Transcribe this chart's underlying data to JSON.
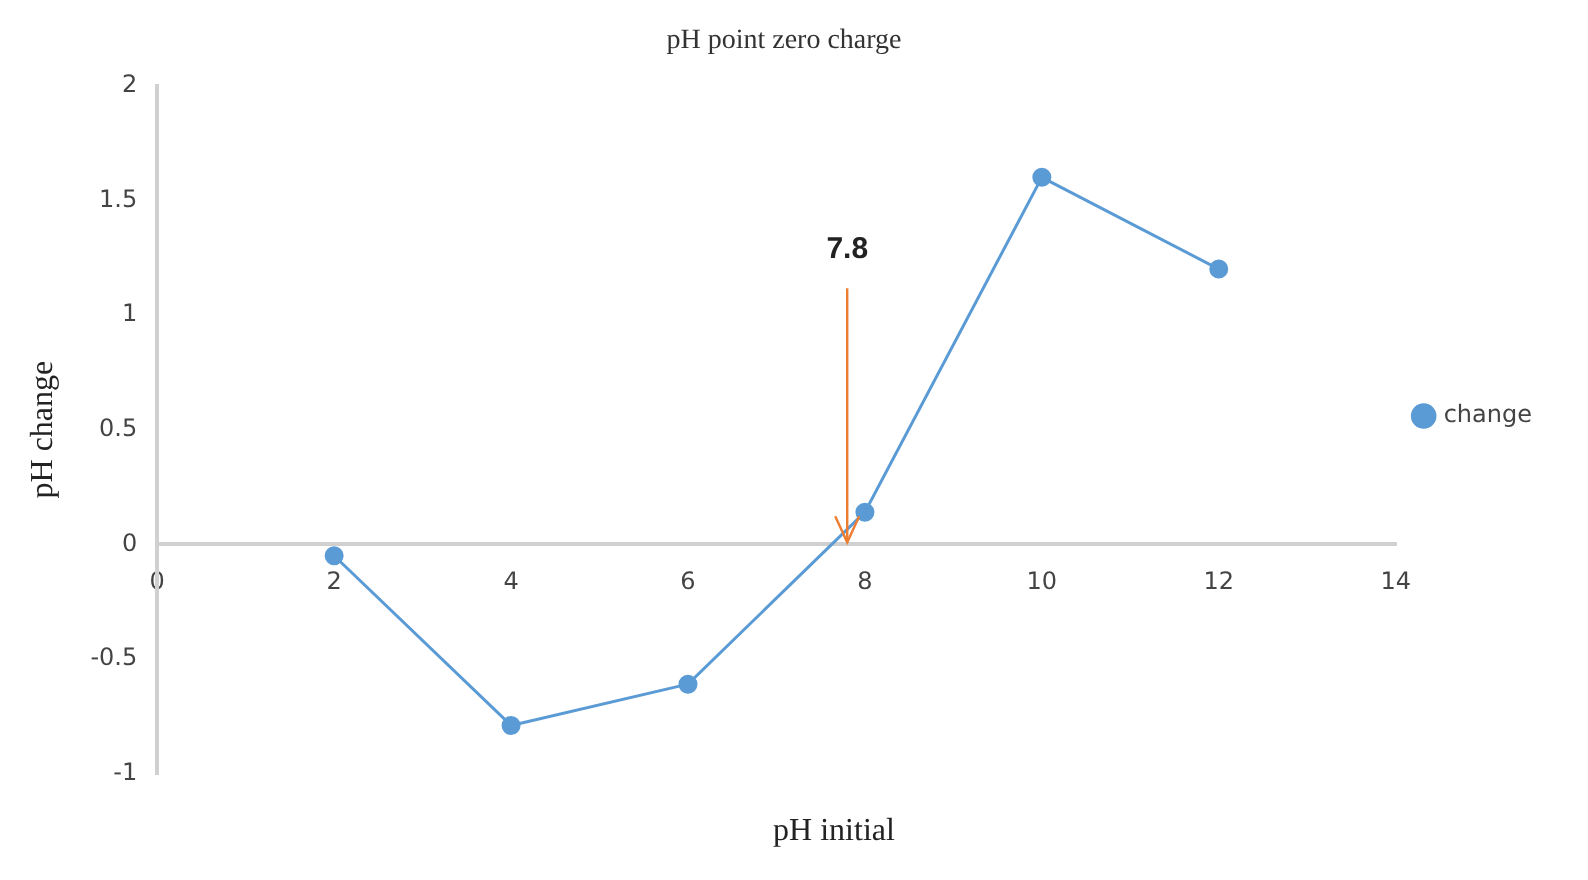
{
  "chart_data": {
    "type": "line",
    "title": "pH point zero charge",
    "xlabel": "pH initial",
    "ylabel": "pH change",
    "x": [
      2,
      4,
      6,
      8,
      10,
      12
    ],
    "series": [
      {
        "name": "change",
        "color": "#5b9bd5",
        "values": [
          -0.05,
          -0.79,
          -0.61,
          0.14,
          1.6,
          1.2
        ]
      }
    ],
    "xlim": [
      0,
      14
    ],
    "xticks": [
      0,
      2,
      4,
      6,
      8,
      10,
      12,
      14
    ],
    "ylim": [
      -1,
      2
    ],
    "yticks": [
      -1,
      -0.5,
      0,
      0.5,
      1,
      1.5,
      2
    ],
    "annotations": [
      {
        "text": "7.8",
        "x": 7.8,
        "y": 0
      }
    ],
    "grid": false,
    "legend": "right",
    "marker": "circle",
    "line_style": "solid"
  }
}
